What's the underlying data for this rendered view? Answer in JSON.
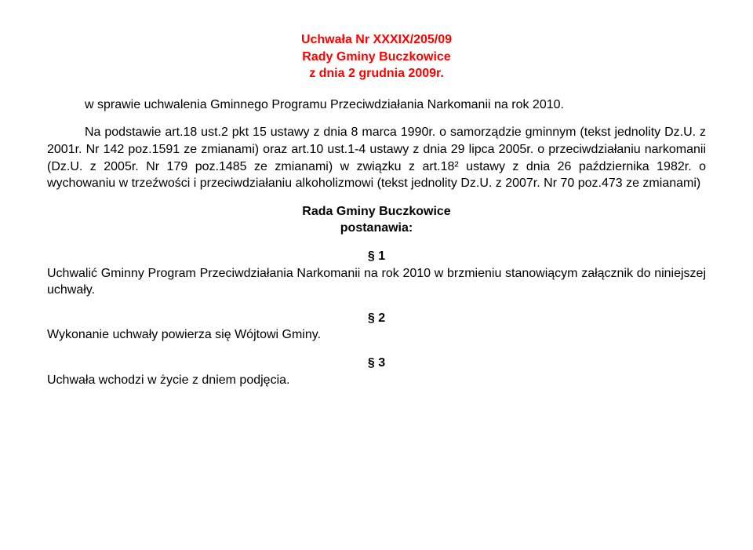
{
  "title": {
    "line1": "Uchwała Nr XXXIX/205/09",
    "line2": "Rady Gminy Buczkowice",
    "line3": "z dnia 2 grudnia 2009r.",
    "color": "#ff0000",
    "fontsize": 16,
    "align": "center",
    "weight": "bold"
  },
  "intro": {
    "text": "w sprawie uchwalenia Gminnego Programu Przeciwdziałania Narkomanii na rok 2010.",
    "indent_label": "2010."
  },
  "basis": {
    "text": "Na podstawie art.18 ust.2 pkt 15 ustawy z dnia 8 marca 1990r. o samorządzie gminnym (tekst jednolity Dz.U. z 2001r. Nr 142 poz.1591 ze zmianami) oraz art.10 ust.1-4 ustawy z dnia 29 lipca 2005r. o przeciwdziałaniu narkomanii (Dz.U. z 2005r. Nr 179 poz.1485 ze zmianami) w związku z art.18² ustawy z dnia 26 października 1982r. o wychowaniu w trzeźwości i przeciwdziałaniu alkoholizmowi (tekst jednolity Dz.U. z 2007r. Nr 70 poz.473 ze zmianami)"
  },
  "enacting": {
    "line1": "Rada Gminy Buczkowice",
    "line2": "postanawia:"
  },
  "sections": [
    {
      "num": "§ 1",
      "body": "Uchwalić Gminny Program Przeciwdziałania Narkomanii na rok 2010 w brzmieniu stanowiącym załącznik do niniejszej uchwały."
    },
    {
      "num": "§ 2",
      "body": "Wykonanie uchwały powierza się Wójtowi Gminy."
    },
    {
      "num": "§ 3",
      "body": "Uchwała wchodzi w życie z dniem podjęcia."
    }
  ],
  "styling": {
    "background_color": "#ffffff",
    "text_color": "#000000",
    "title_color": "#ff0000",
    "body_fontsize": 16,
    "font_family": "Arial"
  }
}
